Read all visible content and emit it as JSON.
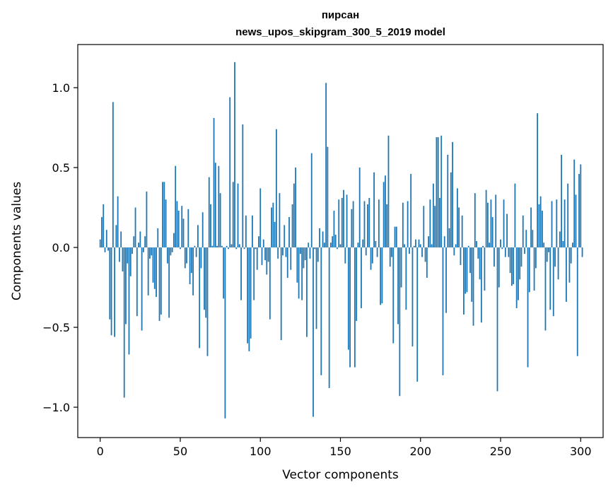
{
  "chart_data": {
    "type": "bar",
    "title_line1": "пирсан",
    "title_line2": "news_upos_skipgram_300_5_2019 model",
    "xlabel": "Vector components",
    "ylabel": "Components values",
    "xlim": [
      -14,
      314
    ],
    "ylim": [
      -1.19,
      1.27
    ],
    "xticks": [
      0,
      50,
      100,
      150,
      200,
      250,
      300
    ],
    "xtick_labels": [
      "0",
      "50",
      "100",
      "150",
      "200",
      "250",
      "300"
    ],
    "yticks": [
      -1.0,
      -0.5,
      0.0,
      0.5,
      1.0
    ],
    "ytick_labels": [
      "−1.0",
      "−0.5",
      "0.0",
      "0.5",
      "1.0"
    ],
    "grid": false,
    "bar_color": "#1f77b4",
    "values": [
      0.05,
      0.19,
      0.27,
      -0.03,
      0.11,
      -0.02,
      -0.45,
      -0.55,
      0.91,
      -0.56,
      0.14,
      0.32,
      -0.09,
      0.1,
      -0.15,
      -0.94,
      -0.48,
      -0.1,
      -0.67,
      -0.18,
      -0.04,
      0.07,
      0.25,
      -0.43,
      0.03,
      0.1,
      -0.52,
      -0.03,
      0.07,
      0.35,
      -0.3,
      -0.07,
      -0.05,
      -0.22,
      -0.26,
      -0.31,
      0.12,
      -0.46,
      -0.42,
      0.41,
      0.41,
      0.3,
      -0.1,
      -0.44,
      -0.05,
      -0.03,
      0.09,
      0.51,
      0.29,
      0.23,
      -0.01,
      0.26,
      0.18,
      -0.13,
      -0.1,
      0.24,
      -0.23,
      -0.16,
      -0.3,
      0.01,
      -0.06,
      0.14,
      -0.63,
      -0.13,
      0.22,
      -0.39,
      -0.44,
      -0.68,
      0.44,
      0.27,
      0.01,
      0.81,
      0.53,
      0.01,
      0.51,
      0.34,
      0.01,
      -0.32,
      -1.07,
      0.01,
      -0.01,
      0.94,
      0.02,
      0.41,
      1.16,
      -0.01,
      0.4,
      0.02,
      -0.33,
      0.77,
      -0.01,
      0.2,
      -0.6,
      -0.65,
      -0.57,
      0.2,
      -0.33,
      -0.01,
      -0.14,
      0.07,
      0.37,
      -0.11,
      0.05,
      -0.08,
      -0.17,
      -0.09,
      -0.45,
      0.25,
      0.28,
      0.16,
      0.74,
      -0.07,
      0.34,
      -0.58,
      -0.05,
      0.14,
      -0.06,
      -0.19,
      0.19,
      -0.14,
      0.27,
      0.4,
      0.5,
      -0.22,
      -0.32,
      -0.04,
      -0.33,
      -0.13,
      -0.08,
      -0.56,
      0.03,
      -0.07,
      0.59,
      -1.06,
      -0.01,
      -0.51,
      -0.09,
      0.12,
      -0.8,
      0.1,
      0.03,
      1.03,
      0.63,
      -0.88,
      0.03,
      0.07,
      0.23,
      0.08,
      -0.01,
      0.3,
      0.02,
      0.31,
      0.36,
      -0.1,
      0.33,
      -0.64,
      -0.75,
      0.24,
      0.29,
      -0.75,
      -0.46,
      0.03,
      0.5,
      -0.38,
      0.05,
      0.29,
      -0.05,
      0.27,
      0.31,
      -0.14,
      -0.1,
      0.47,
      0.04,
      -0.06,
      0.3,
      -0.36,
      -0.35,
      0.41,
      0.45,
      0.27,
      0.7,
      -0.12,
      -0.06,
      -0.6,
      0.13,
      0.13,
      -0.48,
      -0.93,
      -0.25,
      0.28,
      0.02,
      -0.39,
      0.29,
      -0.04,
      0.46,
      -0.62,
      0.01,
      0.05,
      -0.84,
      0.05,
      0.02,
      -0.06,
      0.26,
      -0.09,
      -0.19,
      0.07,
      0.3,
      0.02,
      0.4,
      0.26,
      0.69,
      0.69,
      0.31,
      0.7,
      -0.8,
      0.07,
      -0.41,
      0.58,
      0.12,
      0.47,
      0.66,
      -0.05,
      0.02,
      0.37,
      0.25,
      -0.11,
      0.2,
      -0.42,
      -0.29,
      -0.28,
      0.01,
      -0.16,
      -0.34,
      -0.49,
      0.34,
      0.04,
      -0.07,
      -0.2,
      -0.47,
      0.01,
      -0.27,
      0.36,
      0.28,
      0.03,
      0.3,
      0.19,
      -0.12,
      0.33,
      -0.9,
      -0.25,
      0.05,
      -0.01,
      0.3,
      -0.06,
      0.21,
      -0.06,
      -0.16,
      -0.24,
      -0.23,
      0.4,
      -0.38,
      -0.33,
      -0.2,
      -0.12,
      0.2,
      -0.04,
      0.11,
      -0.75,
      -0.28,
      0.25,
      0.11,
      -0.27,
      -0.13,
      0.84,
      0.27,
      0.32,
      0.23,
      0.03,
      -0.52,
      -0.09,
      -0.03,
      -0.39,
      0.29,
      -0.43,
      -0.12,
      0.3,
      -0.2,
      0.1,
      0.58,
      0.04,
      0.3,
      -0.34,
      0.4,
      -0.22,
      -0.1,
      0.03,
      0.55,
      0.33,
      -0.68,
      0.46,
      0.52,
      -0.06
    ]
  }
}
